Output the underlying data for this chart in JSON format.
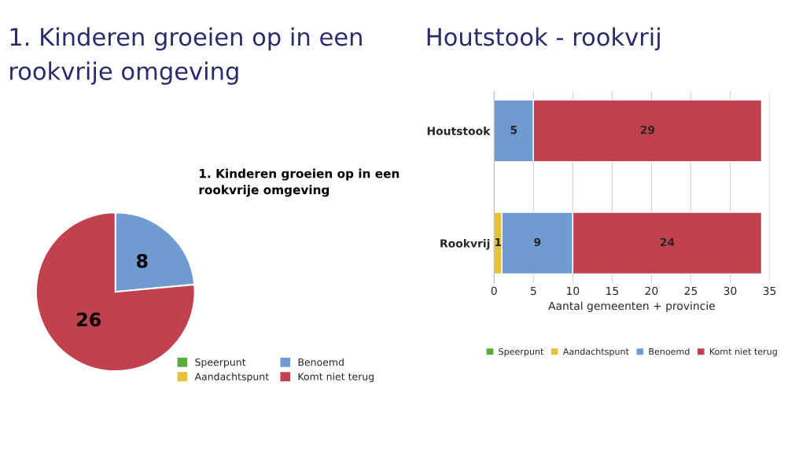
{
  "chart_data": [
    {
      "type": "pie",
      "title": "1. Kinderen groeien op in een rookvrije omgeving",
      "subtitle": "1. Kinderen groeien op in een rookvrije omgeving",
      "categories": [
        "Speerpunt",
        "Aandachtspunt",
        "Benoemd",
        "Komt niet terug"
      ],
      "values": [
        0,
        0,
        8,
        26
      ],
      "colors": [
        "#5aaa3c",
        "#e8c13a",
        "#6f9bd1",
        "#c0424f"
      ],
      "value_labels": [
        null,
        null,
        "8",
        "26"
      ],
      "legend": "bottom right"
    },
    {
      "type": "bar",
      "title": "Houtstook - rookvrij",
      "xlabel": "Aantal gemeenten + provincie",
      "orientation": "horizontal",
      "stacked": true,
      "categories": [
        "Houtstook",
        "Rookvrij"
      ],
      "series": [
        {
          "name": "Speerpunt",
          "color": "#5aaa3c",
          "values": [
            null,
            null
          ]
        },
        {
          "name": "Aandachtspunt",
          "color": "#e8c13a",
          "values": [
            null,
            1
          ]
        },
        {
          "name": "Benoemd",
          "color": "#6f9bd1",
          "values": [
            5,
            9
          ]
        },
        {
          "name": "Komt niet terug",
          "color": "#c0424f",
          "values": [
            29,
            24
          ]
        }
      ],
      "xlim": [
        0,
        35
      ],
      "xticks": [
        0,
        5,
        10,
        15,
        20,
        25,
        30,
        35
      ],
      "grid": "x",
      "data_labels": true,
      "legend": "bottom"
    }
  ]
}
